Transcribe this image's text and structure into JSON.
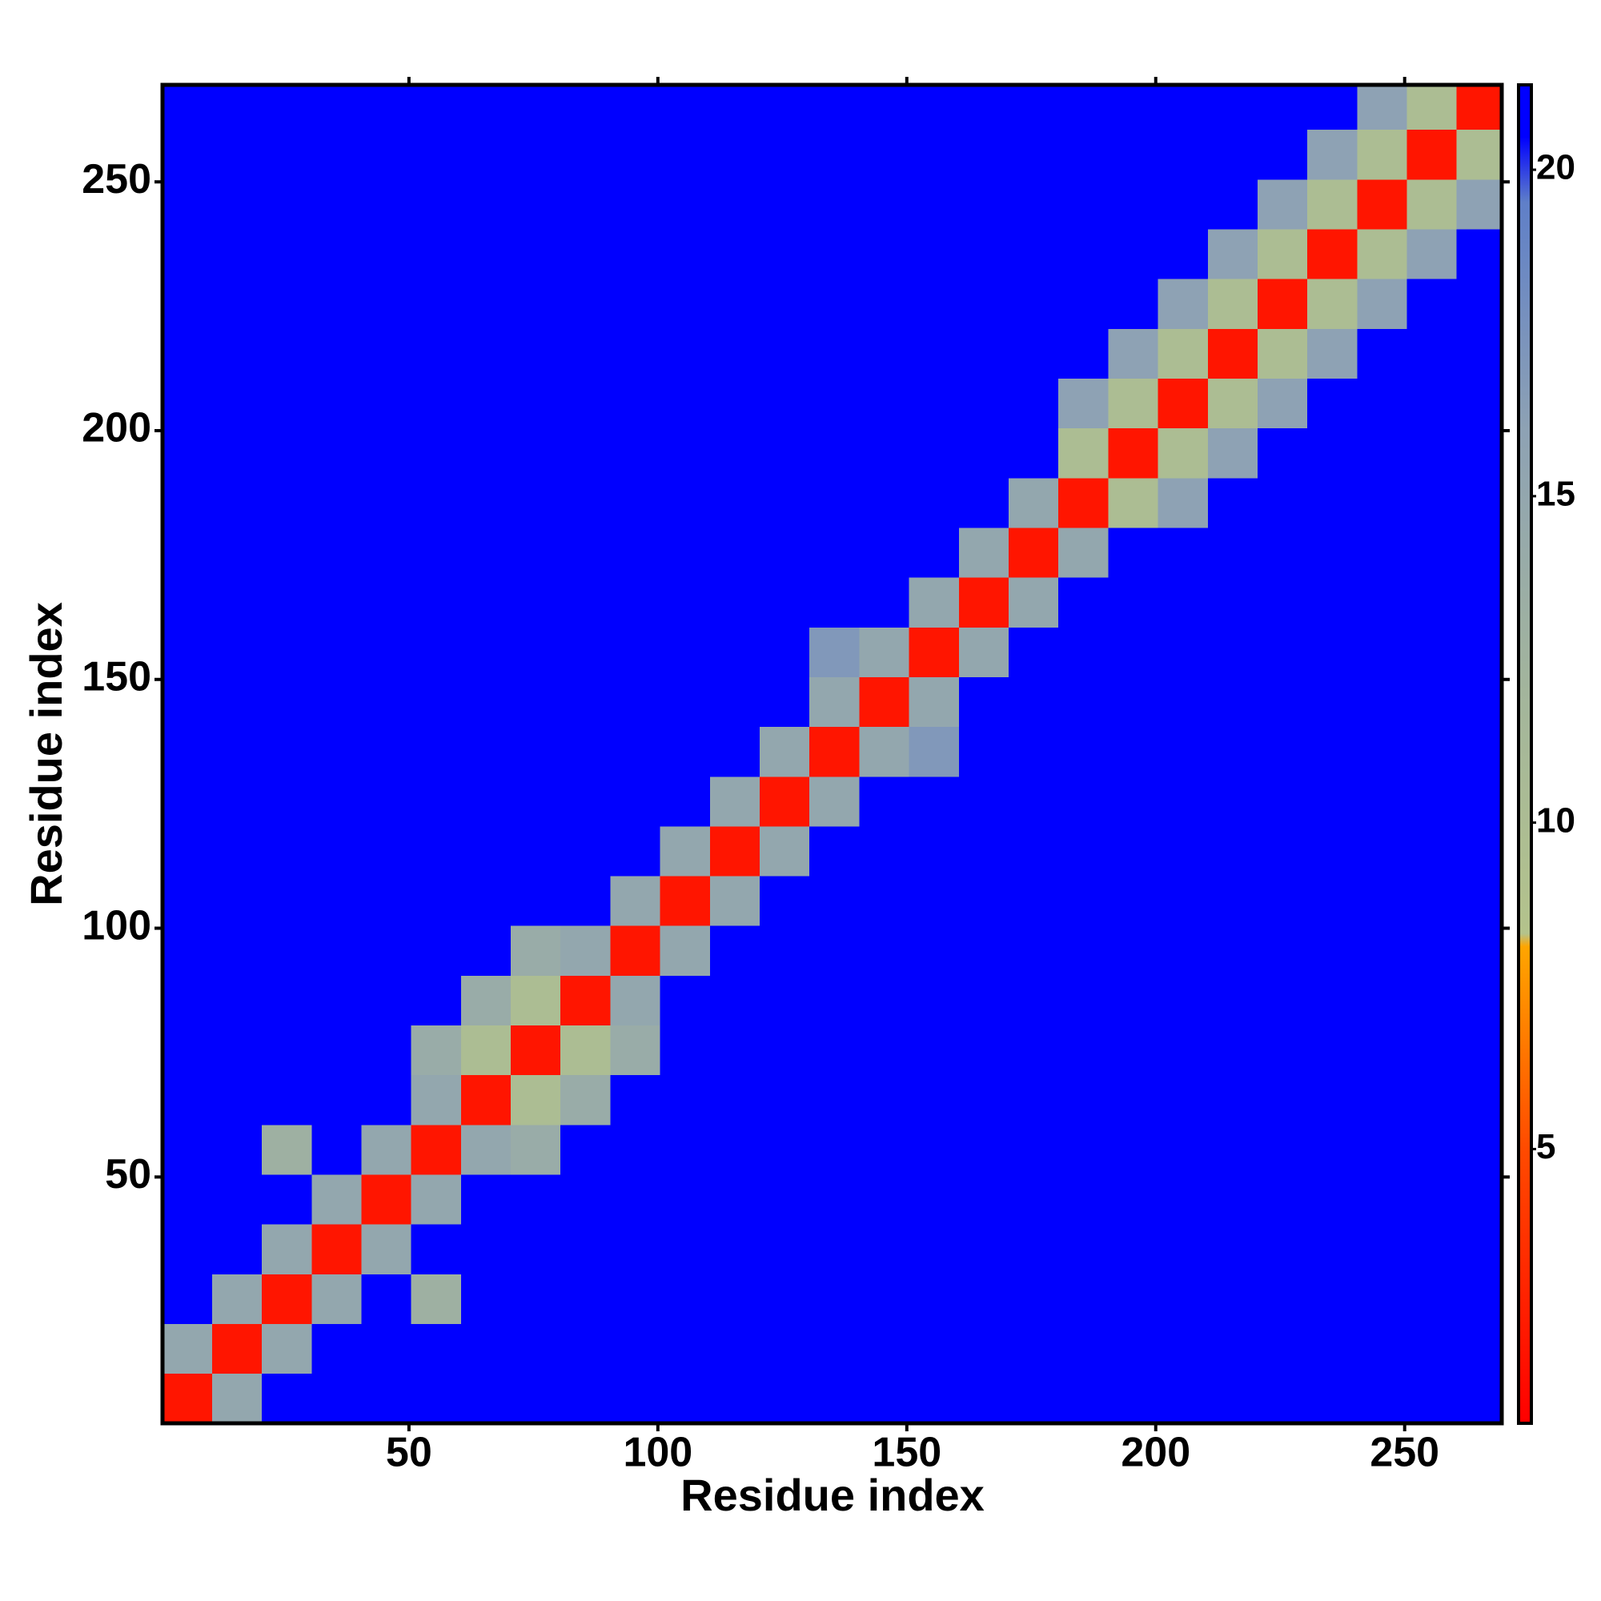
{
  "chart_data": {
    "type": "heatmap",
    "xlabel": "Residue index",
    "ylabel": "Residue index",
    "xlim": [
      0.5,
      269.5
    ],
    "ylim": [
      0.5,
      269.5
    ],
    "xticks": [
      50,
      100,
      150,
      200,
      250
    ],
    "yticks": [
      50,
      100,
      150,
      200,
      250
    ],
    "xbins": [
      0.5,
      10.5,
      20.5,
      30.5,
      40.5,
      50.5,
      60.5,
      70.5,
      80.5,
      90.5,
      100.5,
      110.5,
      120.5,
      130.5,
      140.5,
      150.5,
      160.5,
      170.5,
      180.5,
      190.5,
      200.5,
      210.5,
      220.5,
      230.5,
      240.5,
      250.5,
      260.5,
      269.5
    ],
    "ybins": [
      0.5,
      10.5,
      20.5,
      30.5,
      40.5,
      50.5,
      60.5,
      70.5,
      80.5,
      90.5,
      100.5,
      110.5,
      120.5,
      130.5,
      140.5,
      150.5,
      160.5,
      170.5,
      180.5,
      190.5,
      200.5,
      210.5,
      220.5,
      230.5,
      240.5,
      250.5,
      260.5,
      269.5
    ],
    "clim": [
      0.8,
      21.3
    ],
    "cticks": [
      5,
      10,
      15,
      20
    ],
    "colorscale": [
      [
        0.8,
        "#ff0000"
      ],
      [
        5,
        "#ff4a00"
      ],
      [
        8.1,
        "#ffa500"
      ],
      [
        8.3,
        "#b4c38c"
      ],
      [
        12,
        "#a3b59c"
      ],
      [
        16,
        "#8ea2b4"
      ],
      [
        19.5,
        "#5f7fc8"
      ],
      [
        20.5,
        "#0000ff"
      ],
      [
        21.3,
        "#0000ff"
      ]
    ],
    "values": [
      [
        2,
        15,
        21,
        21,
        21,
        21,
        21,
        21,
        21,
        21,
        21,
        21,
        21,
        21,
        21,
        21,
        21,
        21,
        21,
        21,
        21,
        21,
        21,
        21,
        21,
        21,
        21
      ],
      [
        15,
        2,
        15,
        21,
        21,
        21,
        21,
        21,
        21,
        21,
        21,
        21,
        21,
        21,
        21,
        21,
        21,
        21,
        21,
        21,
        21,
        21,
        21,
        21,
        21,
        21,
        21
      ],
      [
        21,
        15,
        2,
        15,
        21,
        13,
        21,
        21,
        21,
        21,
        21,
        21,
        21,
        21,
        21,
        21,
        21,
        21,
        21,
        21,
        21,
        21,
        21,
        21,
        21,
        21,
        21
      ],
      [
        21,
        21,
        15,
        2,
        15,
        21,
        21,
        21,
        21,
        21,
        21,
        21,
        21,
        21,
        21,
        21,
        21,
        21,
        21,
        21,
        21,
        21,
        21,
        21,
        21,
        21,
        21
      ],
      [
        21,
        21,
        21,
        15,
        2,
        15,
        21,
        21,
        21,
        21,
        21,
        21,
        21,
        21,
        21,
        21,
        21,
        21,
        21,
        21,
        21,
        21,
        21,
        21,
        21,
        21,
        21
      ],
      [
        21,
        21,
        13,
        21,
        15,
        2,
        15,
        14,
        21,
        21,
        21,
        21,
        21,
        21,
        21,
        21,
        21,
        21,
        21,
        21,
        21,
        21,
        21,
        21,
        21,
        21,
        21
      ],
      [
        21,
        21,
        21,
        21,
        21,
        15,
        2,
        10,
        14,
        21,
        21,
        21,
        21,
        21,
        21,
        21,
        21,
        21,
        21,
        21,
        21,
        21,
        21,
        21,
        21,
        21,
        21
      ],
      [
        21,
        21,
        21,
        21,
        21,
        14,
        10,
        2,
        10,
        14,
        21,
        21,
        21,
        21,
        21,
        21,
        21,
        21,
        21,
        21,
        21,
        21,
        21,
        21,
        21,
        21,
        21
      ],
      [
        21,
        21,
        21,
        21,
        21,
        21,
        14,
        10,
        2,
        15,
        21,
        21,
        21,
        21,
        21,
        21,
        21,
        21,
        21,
        21,
        21,
        21,
        21,
        21,
        21,
        21,
        21
      ],
      [
        21,
        21,
        21,
        21,
        21,
        21,
        21,
        14,
        15,
        2,
        15,
        21,
        21,
        21,
        21,
        21,
        21,
        21,
        21,
        21,
        21,
        21,
        21,
        21,
        21,
        21,
        21
      ],
      [
        21,
        21,
        21,
        21,
        21,
        21,
        21,
        21,
        21,
        15,
        2,
        15,
        21,
        21,
        21,
        21,
        21,
        21,
        21,
        21,
        21,
        21,
        21,
        21,
        21,
        21,
        21
      ],
      [
        21,
        21,
        21,
        21,
        21,
        21,
        21,
        21,
        21,
        21,
        15,
        2,
        15,
        21,
        21,
        21,
        21,
        21,
        21,
        21,
        21,
        21,
        21,
        21,
        21,
        21,
        21
      ],
      [
        21,
        21,
        21,
        21,
        21,
        21,
        21,
        21,
        21,
        21,
        21,
        15,
        2,
        15,
        21,
        21,
        21,
        21,
        21,
        21,
        21,
        21,
        21,
        21,
        21,
        21,
        21
      ],
      [
        21,
        21,
        21,
        21,
        21,
        21,
        21,
        21,
        21,
        21,
        21,
        21,
        15,
        2,
        15,
        17,
        21,
        21,
        21,
        21,
        21,
        21,
        21,
        21,
        21,
        21,
        21
      ],
      [
        21,
        21,
        21,
        21,
        21,
        21,
        21,
        21,
        21,
        21,
        21,
        21,
        21,
        15,
        2,
        15,
        21,
        21,
        21,
        21,
        21,
        21,
        21,
        21,
        21,
        21,
        21
      ],
      [
        21,
        21,
        21,
        21,
        21,
        21,
        21,
        21,
        21,
        21,
        21,
        21,
        21,
        17,
        15,
        2,
        15,
        21,
        21,
        21,
        21,
        21,
        21,
        21,
        21,
        21,
        21
      ],
      [
        21,
        21,
        21,
        21,
        21,
        21,
        21,
        21,
        21,
        21,
        21,
        21,
        21,
        21,
        21,
        15,
        2,
        15,
        21,
        21,
        21,
        21,
        21,
        21,
        21,
        21,
        21
      ],
      [
        21,
        21,
        21,
        21,
        21,
        21,
        21,
        21,
        21,
        21,
        21,
        21,
        21,
        21,
        21,
        21,
        15,
        2,
        15,
        21,
        21,
        21,
        21,
        21,
        21,
        21,
        21
      ],
      [
        21,
        21,
        21,
        21,
        21,
        21,
        21,
        21,
        21,
        21,
        21,
        21,
        21,
        21,
        21,
        21,
        21,
        15,
        2,
        10,
        16,
        21,
        21,
        21,
        21,
        21,
        21
      ],
      [
        21,
        21,
        21,
        21,
        21,
        21,
        21,
        21,
        21,
        21,
        21,
        21,
        21,
        21,
        21,
        21,
        21,
        21,
        10,
        2,
        10,
        16,
        21,
        21,
        21,
        21,
        21
      ],
      [
        21,
        21,
        21,
        21,
        21,
        21,
        21,
        21,
        21,
        21,
        21,
        21,
        21,
        21,
        21,
        21,
        21,
        21,
        16,
        10,
        2,
        10,
        16,
        21,
        21,
        21,
        21
      ],
      [
        21,
        21,
        21,
        21,
        21,
        21,
        21,
        21,
        21,
        21,
        21,
        21,
        21,
        21,
        21,
        21,
        21,
        21,
        21,
        16,
        10,
        2,
        10,
        16,
        21,
        21,
        21
      ],
      [
        21,
        21,
        21,
        21,
        21,
        21,
        21,
        21,
        21,
        21,
        21,
        21,
        21,
        21,
        21,
        21,
        21,
        21,
        21,
        21,
        16,
        10,
        2,
        10,
        16,
        21,
        21
      ],
      [
        21,
        21,
        21,
        21,
        21,
        21,
        21,
        21,
        21,
        21,
        21,
        21,
        21,
        21,
        21,
        21,
        21,
        21,
        21,
        21,
        21,
        16,
        10,
        2,
        10,
        16,
        21
      ],
      [
        21,
        21,
        21,
        21,
        21,
        21,
        21,
        21,
        21,
        21,
        21,
        21,
        21,
        21,
        21,
        21,
        21,
        21,
        21,
        21,
        21,
        21,
        16,
        10,
        2,
        10,
        16
      ],
      [
        21,
        21,
        21,
        21,
        21,
        21,
        21,
        21,
        21,
        21,
        21,
        21,
        21,
        21,
        21,
        21,
        21,
        21,
        21,
        21,
        21,
        21,
        21,
        16,
        10,
        2,
        10
      ],
      [
        21,
        21,
        21,
        21,
        21,
        21,
        21,
        21,
        21,
        21,
        21,
        21,
        21,
        21,
        21,
        21,
        21,
        21,
        21,
        21,
        21,
        21,
        21,
        21,
        16,
        10,
        2
      ]
    ]
  }
}
